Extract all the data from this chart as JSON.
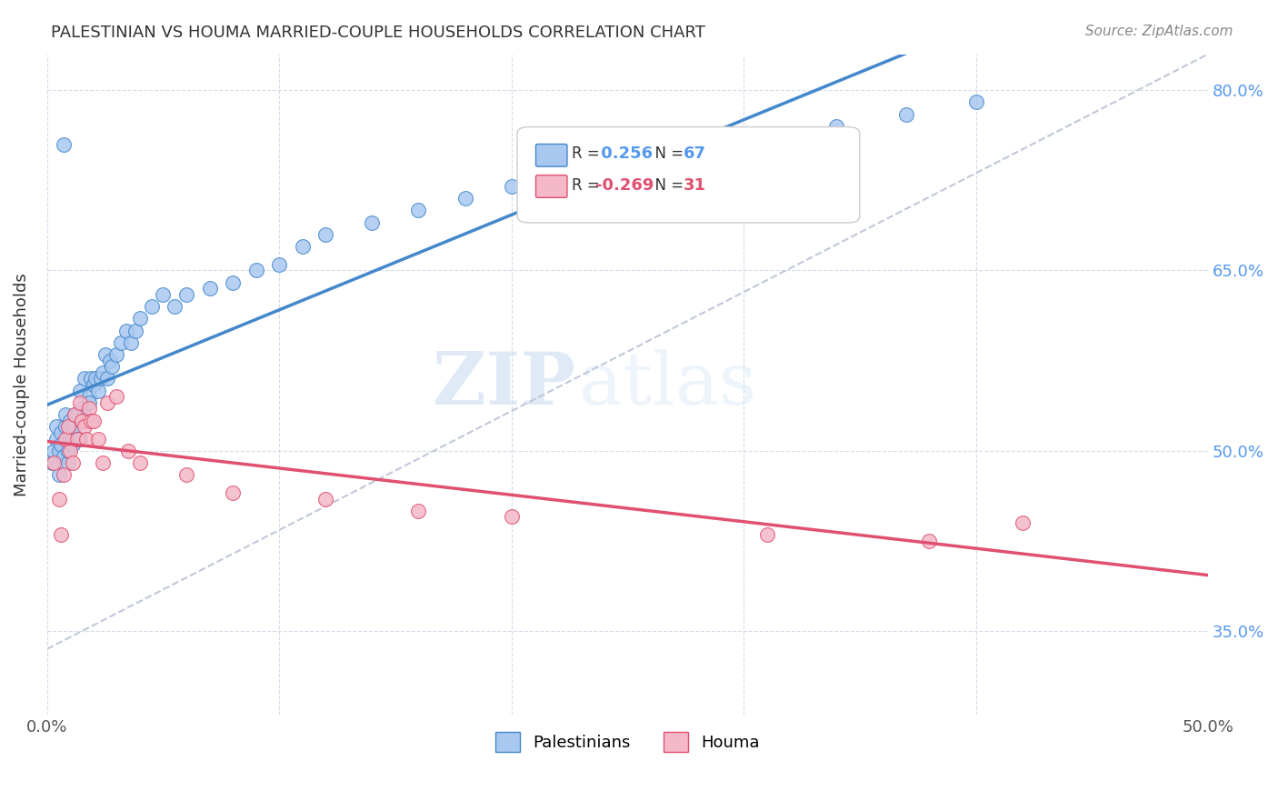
{
  "title": "PALESTINIAN VS HOUMA MARRIED-COUPLE HOUSEHOLDS CORRELATION CHART",
  "source": "Source: ZipAtlas.com",
  "ylabel": "Married-couple Households",
  "x_min": 0.0,
  "x_max": 0.5,
  "y_min": 0.28,
  "y_max": 0.83,
  "x_tick_positions": [
    0.0,
    0.1,
    0.2,
    0.3,
    0.4,
    0.5
  ],
  "x_tick_labels": [
    "0.0%",
    "",
    "",
    "",
    "",
    "50.0%"
  ],
  "y_tick_positions": [
    0.35,
    0.5,
    0.65,
    0.8
  ],
  "y_tick_labels": [
    "35.0%",
    "50.0%",
    "65.0%",
    "80.0%"
  ],
  "blue_color": "#a8c8f0",
  "blue_line_color": "#4488cc",
  "pink_color": "#f4b8c8",
  "pink_line_color": "#e05070",
  "dashed_line_color": "#c0c8d8",
  "watermark_zip": "ZIP",
  "watermark_atlas": "atlas",
  "palestinians_x": [
    0.002,
    0.003,
    0.004,
    0.004,
    0.005,
    0.005,
    0.006,
    0.006,
    0.007,
    0.007,
    0.008,
    0.008,
    0.009,
    0.009,
    0.01,
    0.01,
    0.011,
    0.011,
    0.012,
    0.012,
    0.013,
    0.013,
    0.014,
    0.014,
    0.015,
    0.015,
    0.016,
    0.016,
    0.017,
    0.018,
    0.018,
    0.019,
    0.02,
    0.021,
    0.022,
    0.023,
    0.024,
    0.025,
    0.026,
    0.027,
    0.028,
    0.03,
    0.032,
    0.034,
    0.036,
    0.038,
    0.04,
    0.045,
    0.05,
    0.055,
    0.06,
    0.07,
    0.08,
    0.09,
    0.1,
    0.11,
    0.12,
    0.14,
    0.16,
    0.18,
    0.2,
    0.23,
    0.26,
    0.3,
    0.34,
    0.37,
    0.4
  ],
  "palestinians_y": [
    0.49,
    0.5,
    0.51,
    0.52,
    0.48,
    0.5,
    0.515,
    0.505,
    0.495,
    0.755,
    0.52,
    0.53,
    0.49,
    0.5,
    0.515,
    0.525,
    0.51,
    0.505,
    0.53,
    0.52,
    0.51,
    0.53,
    0.55,
    0.51,
    0.525,
    0.535,
    0.53,
    0.56,
    0.525,
    0.545,
    0.54,
    0.56,
    0.555,
    0.56,
    0.55,
    0.56,
    0.565,
    0.58,
    0.56,
    0.575,
    0.57,
    0.58,
    0.59,
    0.6,
    0.59,
    0.6,
    0.61,
    0.62,
    0.63,
    0.62,
    0.63,
    0.635,
    0.64,
    0.65,
    0.655,
    0.67,
    0.68,
    0.69,
    0.7,
    0.71,
    0.72,
    0.735,
    0.75,
    0.76,
    0.77,
    0.78,
    0.79
  ],
  "houma_x": [
    0.003,
    0.005,
    0.006,
    0.007,
    0.008,
    0.009,
    0.01,
    0.011,
    0.012,
    0.013,
    0.014,
    0.015,
    0.016,
    0.017,
    0.018,
    0.019,
    0.02,
    0.022,
    0.024,
    0.026,
    0.03,
    0.035,
    0.04,
    0.06,
    0.08,
    0.12,
    0.16,
    0.2,
    0.31,
    0.38,
    0.42
  ],
  "houma_y": [
    0.49,
    0.46,
    0.43,
    0.48,
    0.51,
    0.52,
    0.5,
    0.49,
    0.53,
    0.51,
    0.54,
    0.525,
    0.52,
    0.51,
    0.535,
    0.525,
    0.525,
    0.51,
    0.49,
    0.54,
    0.545,
    0.5,
    0.49,
    0.48,
    0.465,
    0.46,
    0.45,
    0.445,
    0.43,
    0.425,
    0.44
  ],
  "r_pal": "0.256",
  "n_pal": "67",
  "r_houma": "-0.269",
  "n_houma": "31"
}
